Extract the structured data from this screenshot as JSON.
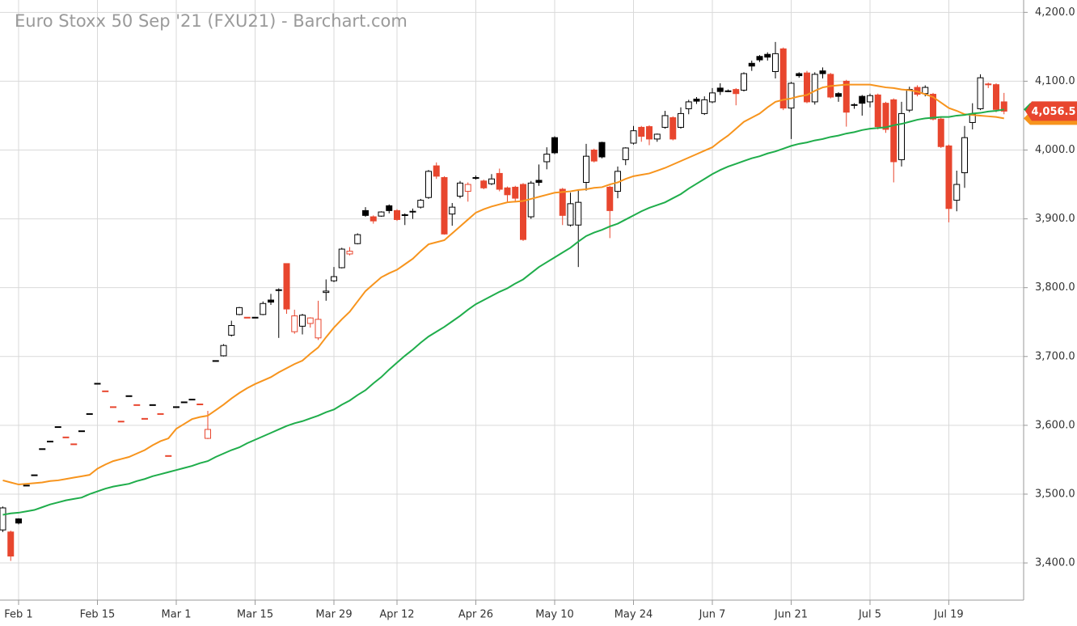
{
  "chart_data": {
    "type": "candlestick",
    "title": "Euro Stoxx 50 Sep '21 (FXU21) - Barchart.com",
    "categories": [
      null,
      null,
      "Feb 1",
      null,
      null,
      null,
      null,
      null,
      null,
      null,
      null,
      null,
      "Feb 15",
      null,
      null,
      null,
      null,
      null,
      null,
      null,
      null,
      null,
      "Mar 1",
      null,
      null,
      null,
      null,
      null,
      null,
      null,
      null,
      null,
      "Mar 15",
      null,
      null,
      null,
      null,
      null,
      null,
      null,
      null,
      null,
      "Mar 29",
      null,
      null,
      null,
      null,
      null,
      null,
      null,
      "Apr 12",
      null,
      null,
      null,
      null,
      null,
      null,
      null,
      null,
      null,
      "Apr 26",
      null,
      null,
      null,
      null,
      null,
      null,
      null,
      null,
      null,
      "May 10",
      null,
      null,
      null,
      null,
      null,
      null,
      null,
      null,
      null,
      "May 24",
      null,
      null,
      null,
      null,
      null,
      null,
      null,
      null,
      null,
      "Jun 7",
      null,
      null,
      null,
      null,
      null,
      null,
      null,
      null,
      null,
      "Jun 21",
      null,
      null,
      null,
      null,
      null,
      null,
      null,
      null,
      null,
      "Jul 5",
      null,
      null,
      null,
      null,
      null,
      null,
      null,
      null,
      null,
      "Jul 19",
      null,
      null,
      null,
      null,
      null,
      null,
      null
    ],
    "open": [
      3448,
      3445,
      3464,
      3513,
      3528,
      3566,
      3577,
      3598,
      3583,
      3573,
      3592,
      3617,
      3661,
      3650,
      3627,
      3606,
      3643,
      3630,
      3610,
      3630,
      3617,
      3556,
      3627,
      3634,
      3638,
      3631,
      3581,
      3694,
      3701,
      3731,
      3761,
      3757,
      3757,
      3761,
      3782,
      3797,
      3835,
      3736,
      3744,
      3748,
      3727,
      3793,
      3810,
      3829,
      3849,
      3864,
      3912,
      3903,
      3904,
      3919,
      3912,
      3905,
      3910,
      3917,
      3931,
      3977,
      3960,
      3907,
      3933,
      3940,
      3959,
      3955,
      3951,
      3966,
      3945,
      3946,
      3950,
      3903,
      3956,
      3983,
      4018,
      3943,
      3891,
      3891,
      3953,
      4000,
      4011,
      3946,
      3940,
      3986,
      4010,
      4033,
      4034,
      4016,
      4033,
      4047,
      4033,
      4060,
      4074,
      4053,
      4070,
      4090,
      4086,
      4088,
      4087,
      4126,
      4136,
      4139,
      4114,
      4147,
      4061,
      4111,
      4112,
      4070,
      4115,
      4110,
      4082,
      4100,
      4066,
      4078,
      4070,
      4080,
      4068,
      4073,
      3986,
      4058,
      4091,
      4082,
      4081,
      4045,
      4006,
      3927,
      3967,
      4040,
      4060,
      4096,
      4095,
      4070
    ],
    "high": [
      3482,
      3447,
      3465,
      3513,
      3528,
      3566,
      3577,
      3598,
      3583,
      3573,
      3592,
      3617,
      3661,
      3650,
      3627,
      3606,
      3643,
      3630,
      3610,
      3630,
      3617,
      3556,
      3627,
      3634,
      3638,
      3631,
      3621,
      3694,
      3718,
      3752,
      3772,
      3757,
      3757,
      3780,
      3791,
      3799,
      3835,
      3768,
      3762,
      3757,
      3781,
      3812,
      3830,
      3858,
      3859,
      3879,
      3917,
      3905,
      3911,
      3921,
      3914,
      3908,
      3915,
      3929,
      3971,
      3982,
      3962,
      3923,
      3955,
      3953,
      3963,
      3957,
      3965,
      3973,
      3947,
      3948,
      3952,
      3955,
      3979,
      4004,
      4020,
      3945,
      3938,
      3941,
      4009,
      4002,
      4012,
      3948,
      3976,
      4004,
      4035,
      4035,
      4036,
      4024,
      4057,
      4049,
      4062,
      4073,
      4077,
      4078,
      4090,
      4097,
      4088,
      4090,
      4113,
      4130,
      4138,
      4142,
      4157,
      4149,
      4099,
      4113,
      4115,
      4113,
      4120,
      4112,
      4084,
      4102,
      4068,
      4080,
      4082,
      4082,
      4070,
      4075,
      4070,
      4092,
      4094,
      4094,
      4083,
      4047,
      4008,
      3970,
      4035,
      4068,
      4110,
      4098,
      4097,
      4083
    ],
    "low": [
      3445,
      3403,
      3456,
      3513,
      3528,
      3566,
      3577,
      3598,
      3583,
      3573,
      3592,
      3617,
      3661,
      3650,
      3627,
      3606,
      3643,
      3630,
      3610,
      3630,
      3617,
      3556,
      3627,
      3634,
      3638,
      3631,
      3580,
      3694,
      3700,
      3729,
      3760,
      3757,
      3757,
      3760,
      3775,
      3727,
      3762,
      3733,
      3732,
      3742,
      3724,
      3781,
      3808,
      3828,
      3847,
      3863,
      3903,
      3893,
      3903,
      3908,
      3897,
      3891,
      3900,
      3915,
      3929,
      3958,
      3877,
      3890,
      3930,
      3925,
      3957,
      3943,
      3949,
      3940,
      3925,
      3925,
      3868,
      3900,
      3948,
      3972,
      3994,
      3891,
      3889,
      3830,
      3941,
      3982,
      3988,
      3872,
      3930,
      3978,
      4008,
      4012,
      4007,
      4012,
      4031,
      4014,
      4031,
      4052,
      4067,
      4051,
      4068,
      4080,
      4084,
      4065,
      4085,
      4115,
      4128,
      4130,
      4104,
      4058,
      4016,
      4105,
      4068,
      4066,
      4104,
      4075,
      4070,
      4034,
      4060,
      4050,
      4062,
      4030,
      4025,
      3953,
      3976,
      4055,
      4078,
      4078,
      4043,
      4003,
      3895,
      3911,
      3945,
      4030,
      4058,
      4090,
      4055,
      4052
    ],
    "close": [
      3480,
      3410,
      3458,
      3513,
      3528,
      3566,
      3577,
      3598,
      3583,
      3573,
      3592,
      3617,
      3661,
      3650,
      3627,
      3606,
      3643,
      3630,
      3610,
      3630,
      3617,
      3556,
      3627,
      3634,
      3638,
      3631,
      3594,
      3694,
      3716,
      3745,
      3771,
      3757,
      3757,
      3777,
      3779,
      3796,
      3769,
      3759,
      3760,
      3756,
      3754,
      3795,
      3816,
      3856,
      3853,
      3877,
      3905,
      3897,
      3910,
      3912,
      3899,
      3906,
      3911,
      3927,
      3969,
      3962,
      3878,
      3917,
      3952,
      3950,
      3960,
      3945,
      3958,
      3943,
      3935,
      3930,
      3870,
      3952,
      3953,
      3994,
      3996,
      3905,
      3922,
      3924,
      3991,
      3984,
      3990,
      3912,
      3969,
      4003,
      4028,
      4020,
      4016,
      4023,
      4050,
      4016,
      4053,
      4070,
      4071,
      4073,
      4083,
      4085,
      4086,
      4082,
      4111,
      4122,
      4131,
      4135,
      4140,
      4061,
      4097,
      4108,
      4070,
      4110,
      4111,
      4077,
      4078,
      4055,
      4065,
      4068,
      4079,
      4034,
      4030,
      3983,
      4053,
      4088,
      4081,
      4091,
      4045,
      4005,
      3915,
      3950,
      4018,
      4052,
      4105,
      4095,
      4059,
      4056.5
    ],
    "candle_colors": {
      "rise": "#000000",
      "fall": "#e8462e"
    },
    "last_value_label": "4,056.5",
    "series": [
      {
        "color": "#f7941d",
        "values": [
          3520,
          3517,
          3514,
          3515,
          3516,
          3517,
          3519,
          3520,
          3522,
          3524,
          3526,
          3528,
          3537,
          3543,
          3548,
          3551,
          3554,
          3559,
          3564,
          3571,
          3577,
          3581,
          3595,
          3602,
          3609,
          3612,
          3614,
          3622,
          3630,
          3639,
          3647,
          3654,
          3660,
          3665,
          3670,
          3677,
          3683,
          3689,
          3694,
          3704,
          3713,
          3728,
          3742,
          3754,
          3765,
          3780,
          3795,
          3805,
          3815,
          3821,
          3826,
          3834,
          3842,
          3853,
          3863,
          3866,
          3869,
          3879,
          3889,
          3899,
          3909,
          3914,
          3918,
          3921,
          3924,
          3925,
          3926,
          3929,
          3932,
          3935,
          3938,
          3939,
          3940,
          3942,
          3943,
          3945,
          3946,
          3950,
          3953,
          3958,
          3962,
          3964,
          3966,
          3970,
          3974,
          3979,
          3984,
          3989,
          3994,
          3999,
          4004,
          4013,
          4021,
          4031,
          4041,
          4047,
          4053,
          4062,
          4070,
          4073,
          4075,
          4078,
          4080,
          4086,
          4091,
          4093,
          4094,
          4095,
          4095,
          4095,
          4095,
          4093,
          4091,
          4090,
          4088,
          4087,
          4085,
          4081,
          4077,
          4069,
          4061,
          4057,
          4052,
          4051,
          4050,
          4049,
          4048,
          4046
        ]
      },
      {
        "color": "#1fad4b",
        "values": [
          3470,
          3472,
          3473,
          3475,
          3477,
          3481,
          3485,
          3488,
          3491,
          3493,
          3495,
          3500,
          3504,
          3508,
          3511,
          3513,
          3515,
          3519,
          3522,
          3526,
          3529,
          3532,
          3535,
          3538,
          3541,
          3545,
          3548,
          3554,
          3559,
          3564,
          3568,
          3574,
          3579,
          3584,
          3589,
          3594,
          3599,
          3603,
          3606,
          3610,
          3614,
          3619,
          3623,
          3630,
          3636,
          3644,
          3651,
          3661,
          3670,
          3681,
          3691,
          3701,
          3710,
          3720,
          3729,
          3736,
          3743,
          3751,
          3759,
          3768,
          3776,
          3782,
          3788,
          3794,
          3799,
          3806,
          3812,
          3821,
          3830,
          3837,
          3844,
          3851,
          3858,
          3867,
          3875,
          3880,
          3884,
          3889,
          3893,
          3899,
          3905,
          3911,
          3916,
          3920,
          3924,
          3930,
          3936,
          3944,
          3951,
          3958,
          3965,
          3971,
          3976,
          3980,
          3984,
          3988,
          3991,
          3995,
          3998,
          4002,
          4006,
          4009,
          4011,
          4014,
          4016,
          4019,
          4021,
          4024,
          4026,
          4029,
          4031,
          4032,
          4033,
          4036,
          4038,
          4041,
          4044,
          4046,
          4047,
          4048,
          4048,
          4050,
          4051,
          4053,
          4054,
          4056,
          4057,
          4059
        ]
      }
    ],
    "ylim": [
      3346,
      4218
    ],
    "yticks": [
      {
        "value": 3400,
        "label": "3,400.0"
      },
      {
        "value": 3500,
        "label": "3,500.0"
      },
      {
        "value": 3600,
        "label": "3,600.0"
      },
      {
        "value": 3700,
        "label": "3,700.0"
      },
      {
        "value": 3800,
        "label": "3,800.0"
      },
      {
        "value": 3900,
        "label": "3,900.0"
      },
      {
        "value": 4000,
        "label": "4,000.0"
      },
      {
        "value": 4100,
        "label": "4,100.0"
      },
      {
        "value": 4200,
        "label": "4,200.0"
      }
    ],
    "grid": true
  }
}
